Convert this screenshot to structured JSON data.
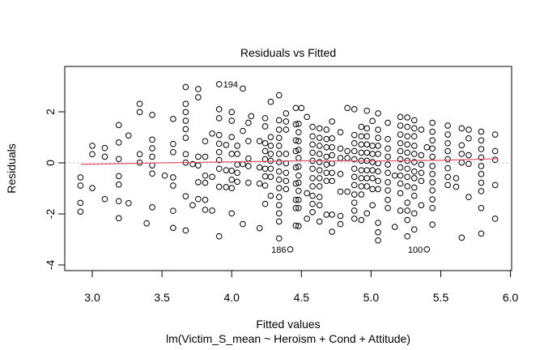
{
  "chart_data": {
    "type": "scatter",
    "title": "Residuals vs Fitted",
    "xlabel": "Fitted values",
    "ylabel": "Residuals",
    "subtitle": "lm(Victim_S_mean ~ Heroism + Cond + Attitude)",
    "xlim": [
      2.8,
      6.0
    ],
    "ylim": [
      -4.2,
      3.8
    ],
    "x_ticks": [
      "3.0",
      "3.5",
      "4.0",
      "4.5",
      "5.0",
      "5.5",
      "6.0"
    ],
    "x_tick_values": [
      3.0,
      3.5,
      4.0,
      4.5,
      5.0,
      5.5,
      6.0
    ],
    "y_ticks": [
      "-4",
      "-2",
      "0",
      "2"
    ],
    "y_tick_values": [
      -4,
      -2,
      0,
      2
    ],
    "reference_line": 0,
    "smooth_color": "#DF536B",
    "smooth_line": [
      [
        2.92,
        -0.06
      ],
      [
        3.5,
        0.0
      ],
      [
        4.0,
        0.04
      ],
      [
        4.5,
        0.08
      ],
      [
        5.0,
        0.07
      ],
      [
        5.5,
        0.1
      ],
      [
        5.9,
        0.16
      ]
    ],
    "labeled_points": [
      {
        "label": "194",
        "x": 3.91,
        "y": 3.08,
        "side": "right"
      },
      {
        "label": "186",
        "x": 4.42,
        "y": -3.39,
        "side": "left"
      },
      {
        "label": "100",
        "x": 5.4,
        "y": -3.39,
        "side": "left"
      }
    ],
    "columns": [
      {
        "x": 2.915,
        "y": [
          -0.57,
          -0.89,
          -1.57,
          -1.91
        ]
      },
      {
        "x": 3.0,
        "y": [
          0.67,
          0.34,
          -0.99
        ]
      },
      {
        "x": 3.09,
        "y": [
          0.58,
          0.24,
          -1.42
        ]
      },
      {
        "x": 3.19,
        "y": [
          1.48,
          0.8,
          0.15,
          -0.52,
          -0.85,
          -1.5,
          -2.17
        ]
      },
      {
        "x": 3.26,
        "y": [
          1.07,
          -1.58
        ]
      },
      {
        "x": 3.34,
        "y": [
          2.31,
          1.99,
          0.34,
          0.01
        ]
      },
      {
        "x": 3.39,
        "y": [
          -2.37
        ]
      },
      {
        "x": 3.43,
        "y": [
          1.88,
          0.91,
          0.57,
          0.24,
          -0.1,
          -0.42,
          -1.74
        ]
      },
      {
        "x": 3.52,
        "y": [
          -0.5
        ]
      },
      {
        "x": 3.58,
        "y": [
          1.72,
          0.74,
          0.42,
          -0.57,
          -0.89,
          -1.88,
          -2.55
        ]
      },
      {
        "x": 3.67,
        "y": [
          2.97,
          2.31,
          1.99,
          1.65,
          1.32,
          0.98,
          0.34,
          0.01,
          -1.31,
          -2.65
        ]
      },
      {
        "x": 3.72,
        "y": [
          -0.05,
          -1.66
        ]
      },
      {
        "x": 3.76,
        "y": [
          2.89,
          2.57,
          0.24,
          -0.1,
          -0.76,
          -1.42
        ]
      },
      {
        "x": 3.81,
        "y": [
          0.85,
          0.24,
          -0.5,
          -0.78,
          -1.45,
          -1.84
        ]
      },
      {
        "x": 3.86,
        "y": [
          1.15,
          -0.55,
          -1.87
        ]
      },
      {
        "x": 3.91,
        "y": [
          3.08,
          2.1,
          1.75,
          1.09,
          0.75,
          0.42,
          0.11,
          -0.23,
          -0.94,
          -2.88
        ]
      },
      {
        "x": 3.96,
        "y": [
          0.7,
          -0.29,
          -0.95
        ]
      },
      {
        "x": 4.0,
        "y": [
          1.99,
          1.65,
          1.01,
          0.35,
          -0.31,
          -0.66,
          -0.99,
          -1.98
        ]
      },
      {
        "x": 4.04,
        "y": [
          0.67,
          0.35,
          -0.07,
          -0.39,
          -0.74
        ]
      },
      {
        "x": 4.08,
        "y": [
          2.91,
          1.25,
          -0.05,
          -2.4
        ]
      },
      {
        "x": 4.12,
        "y": [
          1.57,
          0.85,
          0.17,
          -0.13,
          -0.78
        ]
      },
      {
        "x": 4.14,
        "y": [
          1.83
        ]
      },
      {
        "x": 4.2,
        "y": [
          0.85,
          -0.18,
          -0.81,
          -2.56
        ]
      },
      {
        "x": 4.24,
        "y": [
          1.75,
          1.43,
          0.77,
          0.46,
          0.14,
          -0.23,
          -0.53,
          -0.89,
          -1.61
        ]
      },
      {
        "x": 4.28,
        "y": [
          2.39,
          1.01,
          0.67,
          0.35,
          0.08,
          -0.23,
          -0.55,
          -1.29
        ]
      },
      {
        "x": 4.34,
        "y": [
          2.65,
          1.67,
          1.3,
          0.98,
          0.67,
          0.35,
          0.03,
          -0.34,
          -0.66,
          -0.99,
          -1.34,
          -1.66,
          -1.98,
          -2.3,
          -2.96
        ]
      },
      {
        "x": 4.39,
        "y": [
          1.94,
          1.62,
          1.3,
          0.35,
          -0.02,
          -0.39,
          -0.71,
          -1.03
        ]
      },
      {
        "x": 4.42,
        "y": [
          -3.39
        ]
      },
      {
        "x": 4.46,
        "y": [
          2.15,
          1.51,
          0.88,
          0.46,
          -0.18,
          -0.81,
          -1.45,
          -1.77,
          -2.46
        ]
      },
      {
        "x": 4.48,
        "y": [
          1.53,
          1.2,
          0.85,
          0.51,
          0.19,
          -0.15,
          -0.5,
          -0.78,
          -1.1,
          -1.45,
          -1.77,
          -2.48
        ]
      },
      {
        "x": 4.5,
        "y": [
          2.15
        ]
      },
      {
        "x": 4.54,
        "y": [
          1.8,
          -1.19,
          -2.19
        ]
      },
      {
        "x": 4.58,
        "y": [
          1.41,
          1.04,
          0.72,
          0.4,
          0.08,
          -0.23,
          -0.6,
          -0.92,
          -1.29,
          -1.61,
          -1.93
        ]
      },
      {
        "x": 4.63,
        "y": [
          1.35,
          0.98,
          0.67,
          0.35,
          0.03,
          -0.29,
          -0.6,
          -0.92,
          -1.34,
          -1.66,
          -2.3
        ]
      },
      {
        "x": 4.68,
        "y": [
          1.3,
          0.93,
          0.61,
          0.24,
          -0.07,
          -0.39,
          -0.71,
          -2.03
        ]
      },
      {
        "x": 4.72,
        "y": [
          1.62,
          0.96,
          0.61,
          0.3,
          -0.02,
          -0.39,
          -0.71,
          -2.03,
          -2.7
        ]
      },
      {
        "x": 4.78,
        "y": [
          1.2,
          0.56,
          0.19,
          -0.44,
          -1.13,
          -2.08,
          -2.4
        ]
      },
      {
        "x": 4.83,
        "y": [
          2.15,
          0.46,
          0.19,
          -1.13
        ]
      },
      {
        "x": 4.88,
        "y": [
          2.1,
          1.09,
          0.77,
          0.46,
          0.14,
          -0.23,
          -0.55,
          -0.87,
          -1.24,
          -1.56,
          -1.87,
          -2.19
        ]
      },
      {
        "x": 4.93,
        "y": [
          1.41,
          1.04,
          0.72,
          0.4,
          0.08,
          -0.29,
          -0.6,
          -0.92,
          -1.24,
          -2.24
        ]
      },
      {
        "x": 4.97,
        "y": [
          2.04,
          1.35,
          1.04,
          0.72,
          0.4,
          0.08,
          -0.29,
          -0.6,
          -0.92,
          -1.98
        ]
      },
      {
        "x": 5.01,
        "y": [
          1.64,
          0.67,
          0.35,
          0.03,
          -0.29,
          -0.6,
          -1.03,
          -1.66
        ]
      },
      {
        "x": 5.05,
        "y": [
          1.94,
          1.3,
          0.98,
          0.67,
          0.35,
          -0.02,
          -0.34,
          -0.71,
          -1.03,
          -2.35,
          -2.72,
          -3.04
        ]
      },
      {
        "x": 5.12,
        "y": [
          1.57,
          0.93,
          0.56,
          0.24,
          -0.07,
          -0.39,
          -0.76,
          -1.08,
          -1.45,
          -1.77
        ]
      },
      {
        "x": 5.17,
        "y": [
          -0.5,
          -2.51
        ]
      },
      {
        "x": 5.21,
        "y": [
          1.8,
          1.46,
          1.11,
          0.77,
          0.46,
          0.14,
          -0.18,
          -0.5,
          -0.81,
          -1.19,
          -1.87
        ]
      },
      {
        "x": 5.26,
        "y": [
          1.78,
          1.41,
          1.04,
          0.72,
          0.4,
          0.08,
          -0.23,
          -0.55,
          -0.92,
          -1.56,
          -1.87,
          -2.24,
          -2.88
        ]
      },
      {
        "x": 5.31,
        "y": [
          1.67,
          1.35,
          1.04,
          0.67,
          0.35,
          0.03,
          -0.34,
          -0.6,
          -0.97,
          -1.29,
          -1.98,
          -2.61
        ]
      },
      {
        "x": 5.36,
        "y": [
          1.3,
          0.3,
          -0.07,
          -0.39,
          -0.71,
          -1.66
        ]
      },
      {
        "x": 5.4,
        "y": [
          0.61,
          -3.39
        ]
      },
      {
        "x": 5.44,
        "y": [
          1.57,
          1.22,
          0.88,
          0.56,
          0.24,
          -0.13,
          -0.44,
          -0.76,
          -1.08,
          -1.43,
          -1.77,
          -2.42
        ]
      },
      {
        "x": 5.55,
        "y": [
          1.46,
          1.11,
          0.77,
          0.46,
          0.14,
          -0.21,
          -0.55,
          -0.87
        ]
      },
      {
        "x": 5.61,
        "y": [
          -0.6,
          -0.94
        ]
      },
      {
        "x": 5.65,
        "y": [
          1.35,
          0.69,
          0.35,
          0.01,
          -2.93
        ]
      },
      {
        "x": 5.7,
        "y": [
          1.3,
          0.96,
          0.3,
          -0.04,
          -1.34
        ]
      },
      {
        "x": 5.79,
        "y": [
          1.22,
          0.88,
          0.54,
          0.21,
          -0.13,
          -0.44,
          -0.78,
          -1.11,
          -1.77,
          -2.77
        ]
      },
      {
        "x": 5.89,
        "y": [
          1.11,
          0.46,
          0.12,
          -0.87,
          -2.19
        ]
      }
    ]
  }
}
